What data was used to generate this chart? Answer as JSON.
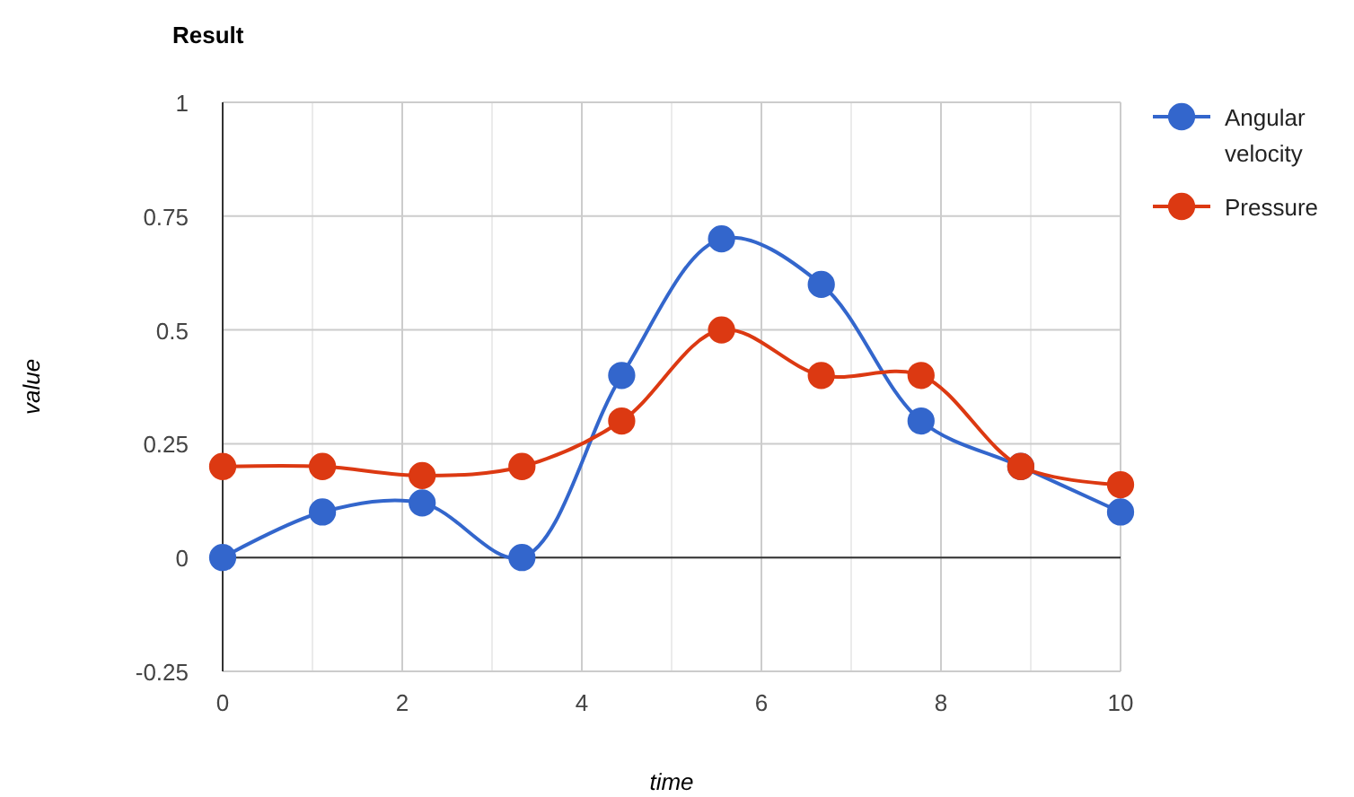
{
  "chart_data": {
    "type": "line",
    "title": "Result",
    "xlabel": "time",
    "ylabel": "value",
    "x": [
      0,
      1.111,
      2.222,
      3.333,
      4.444,
      5.556,
      6.667,
      7.778,
      8.889,
      10
    ],
    "series": [
      {
        "name": "Angular velocity",
        "color": "#3366cc",
        "values": [
          0,
          0.1,
          0.12,
          0,
          0.4,
          0.7,
          0.6,
          0.3,
          0.2,
          0.1
        ]
      },
      {
        "name": "Pressure",
        "color": "#dc3912",
        "values": [
          0.2,
          0.2,
          0.18,
          0.2,
          0.3,
          0.5,
          0.4,
          0.4,
          0.2,
          0.16
        ]
      }
    ],
    "xlim": [
      0,
      10
    ],
    "xticks": [
      0,
      {
        "value": 1,
        "label": null
      },
      2,
      {
        "value": 3,
        "label": null
      },
      4,
      {
        "value": 5,
        "label": null
      },
      6,
      {
        "value": 7,
        "label": null
      },
      8,
      {
        "value": 9,
        "label": null
      },
      10
    ],
    "ylim": [
      -0.25,
      1
    ],
    "yticks": [
      -0.25,
      0,
      0.25,
      0.5,
      0.75,
      1
    ],
    "grid": true,
    "legend": "top right",
    "marker": "circle",
    "line_style": "solid"
  }
}
